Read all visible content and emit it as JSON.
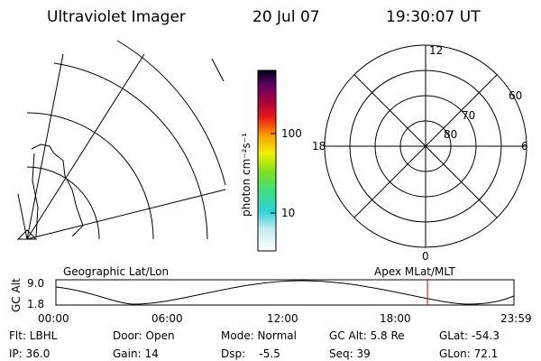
{
  "header": {
    "title": "Ultraviolet Imager",
    "date": "20 Jul 07",
    "time": "19:30:07 UT"
  },
  "colorbar": {
    "label": "photon cm⁻²s⁻¹",
    "ticks": [
      "100",
      "10"
    ]
  },
  "polar": {
    "mlt_labels": [
      "12",
      "18",
      "6",
      "0"
    ],
    "lat_labels": [
      "60",
      "70",
      "80"
    ]
  },
  "strip": {
    "left_title": "Geographic Lat/Lon",
    "right_title": "Apex MLat/MLT",
    "y_label": "GC Alt",
    "y_ticks": [
      "9.0",
      "1.8"
    ],
    "x_ticks": [
      "00:00",
      "06:00",
      "12:00",
      "18:00",
      "23:59"
    ]
  },
  "footer": {
    "row1": [
      "Flt: LBHL",
      "Door: Open",
      "Mode: Normal",
      "GC Alt: 5.8 Re",
      "GLat: -54.3"
    ],
    "row2": [
      "IP: 36.0",
      "Gain: 14",
      "Dsp:    -5.5",
      "Seq: 39",
      "GLon: 72.1"
    ]
  }
}
